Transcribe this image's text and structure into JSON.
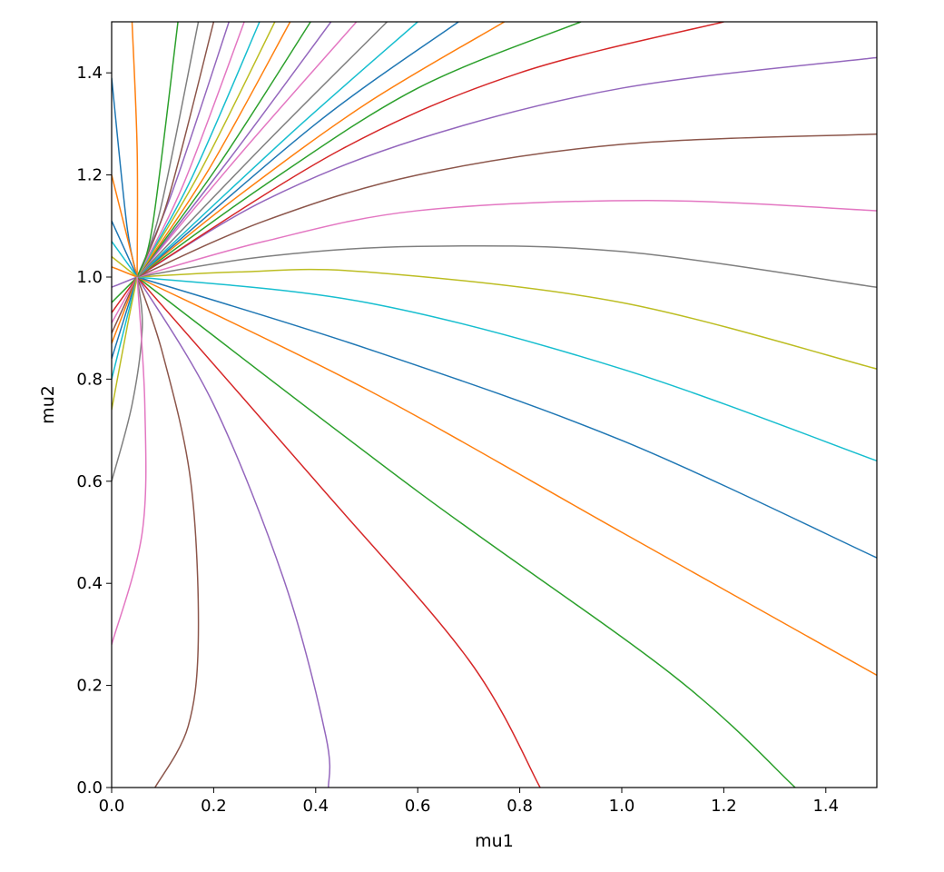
{
  "chart_data": {
    "type": "line",
    "title": "",
    "xlabel": "mu1",
    "ylabel": "mu2",
    "xlim": [
      0,
      1.5
    ],
    "ylim": [
      0,
      1.5
    ],
    "xticks": [
      "0.0",
      "0.2",
      "0.4",
      "0.6",
      "0.8",
      "1.0",
      "1.2",
      "1.4"
    ],
    "yticks": [
      "0.0",
      "0.2",
      "0.4",
      "0.6",
      "0.8",
      "1.0",
      "1.2",
      "1.4"
    ],
    "grid": false,
    "legend": "none",
    "focal_point": [
      0.05,
      1.0
    ],
    "curve_family": {
      "description_values": "curves radiate from focal point; bending in mu1/mu2 plane",
      "colors": [
        "#1f77b4",
        "#ff7f0e",
        "#2ca02c",
        "#d62728",
        "#9467bd",
        "#8c564b",
        "#e377c2",
        "#7f7f7f",
        "#bcbd22",
        "#17becf"
      ]
    },
    "series": [
      {
        "color": "#8c564b",
        "points": [
          [
            0.085,
            0.0
          ],
          [
            0.15,
            0.12
          ],
          [
            0.17,
            0.3
          ],
          [
            0.155,
            0.6
          ],
          [
            0.1,
            0.85
          ],
          [
            0.05,
            1.0
          ]
        ]
      },
      {
        "color": "#9467bd",
        "points": [
          [
            0.425,
            0.0
          ],
          [
            0.42,
            0.1
          ],
          [
            0.34,
            0.4
          ],
          [
            0.2,
            0.75
          ],
          [
            0.05,
            1.0
          ]
        ]
      },
      {
        "color": "#d62728",
        "points": [
          [
            0.84,
            0.0
          ],
          [
            0.7,
            0.25
          ],
          [
            0.4,
            0.6
          ],
          [
            0.05,
            1.0
          ]
        ]
      },
      {
        "color": "#2ca02c",
        "points": [
          [
            1.34,
            0.0
          ],
          [
            1.1,
            0.22
          ],
          [
            0.6,
            0.58
          ],
          [
            0.05,
            1.0
          ]
        ]
      },
      {
        "color": "#ff7f0e",
        "points": [
          [
            1.5,
            0.22
          ],
          [
            1.0,
            0.5
          ],
          [
            0.5,
            0.78
          ],
          [
            0.05,
            1.0
          ]
        ]
      },
      {
        "color": "#1f77b4",
        "points": [
          [
            1.5,
            0.45
          ],
          [
            1.0,
            0.68
          ],
          [
            0.5,
            0.86
          ],
          [
            0.05,
            1.0
          ]
        ]
      },
      {
        "color": "#17becf",
        "points": [
          [
            1.5,
            0.64
          ],
          [
            1.0,
            0.82
          ],
          [
            0.5,
            0.95
          ],
          [
            0.05,
            1.0
          ]
        ]
      },
      {
        "color": "#bcbd22",
        "points": [
          [
            1.5,
            0.82
          ],
          [
            1.0,
            0.95
          ],
          [
            0.5,
            1.01
          ],
          [
            0.25,
            1.01
          ],
          [
            0.05,
            1.0
          ]
        ]
      },
      {
        "color": "#7f7f7f",
        "points": [
          [
            1.5,
            0.98
          ],
          [
            1.0,
            1.05
          ],
          [
            0.6,
            1.06
          ],
          [
            0.3,
            1.04
          ],
          [
            0.05,
            1.0
          ]
        ]
      },
      {
        "color": "#e377c2",
        "points": [
          [
            1.5,
            1.13
          ],
          [
            1.05,
            1.15
          ],
          [
            0.6,
            1.13
          ],
          [
            0.3,
            1.07
          ],
          [
            0.05,
            1.0
          ]
        ]
      },
      {
        "color": "#8c564b",
        "points": [
          [
            1.5,
            1.28
          ],
          [
            1.0,
            1.26
          ],
          [
            0.6,
            1.2
          ],
          [
            0.3,
            1.11
          ],
          [
            0.05,
            1.0
          ]
        ]
      },
      {
        "color": "#9467bd",
        "points": [
          [
            1.5,
            1.43
          ],
          [
            1.0,
            1.37
          ],
          [
            0.6,
            1.27
          ],
          [
            0.3,
            1.15
          ],
          [
            0.05,
            1.0
          ]
        ]
      },
      {
        "color": "#d62728",
        "points": [
          [
            1.2,
            1.5
          ],
          [
            0.8,
            1.4
          ],
          [
            0.45,
            1.25
          ],
          [
            0.05,
            1.0
          ]
        ]
      },
      {
        "color": "#2ca02c",
        "points": [
          [
            0.92,
            1.5
          ],
          [
            0.6,
            1.37
          ],
          [
            0.3,
            1.18
          ],
          [
            0.05,
            1.0
          ]
        ]
      },
      {
        "color": "#ff7f0e",
        "points": [
          [
            0.77,
            1.5
          ],
          [
            0.5,
            1.34
          ],
          [
            0.25,
            1.16
          ],
          [
            0.05,
            1.0
          ]
        ]
      },
      {
        "color": "#1f77b4",
        "points": [
          [
            0.68,
            1.5
          ],
          [
            0.4,
            1.3
          ],
          [
            0.05,
            1.0
          ]
        ]
      },
      {
        "color": "#17becf",
        "points": [
          [
            0.6,
            1.5
          ],
          [
            0.35,
            1.28
          ],
          [
            0.05,
            1.0
          ]
        ]
      },
      {
        "color": "#7f7f7f",
        "points": [
          [
            0.54,
            1.5
          ],
          [
            0.3,
            1.26
          ],
          [
            0.05,
            1.0
          ]
        ]
      },
      {
        "color": "#e377c2",
        "points": [
          [
            0.48,
            1.5
          ],
          [
            0.26,
            1.25
          ],
          [
            0.05,
            1.0
          ]
        ]
      },
      {
        "color": "#9467bd",
        "points": [
          [
            0.43,
            1.5
          ],
          [
            0.23,
            1.23
          ],
          [
            0.05,
            1.0
          ]
        ]
      },
      {
        "color": "#2ca02c",
        "points": [
          [
            0.39,
            1.5
          ],
          [
            0.21,
            1.22
          ],
          [
            0.05,
            1.0
          ]
        ]
      },
      {
        "color": "#ff7f0e",
        "points": [
          [
            0.35,
            1.5
          ],
          [
            0.19,
            1.21
          ],
          [
            0.05,
            1.0
          ]
        ]
      },
      {
        "color": "#bcbd22",
        "points": [
          [
            0.32,
            1.5
          ],
          [
            0.17,
            1.2
          ],
          [
            0.05,
            1.0
          ]
        ]
      },
      {
        "color": "#17becf",
        "points": [
          [
            0.29,
            1.5
          ],
          [
            0.155,
            1.19
          ],
          [
            0.05,
            1.0
          ]
        ]
      },
      {
        "color": "#e377c2",
        "points": [
          [
            0.26,
            1.5
          ],
          [
            0.14,
            1.18
          ],
          [
            0.05,
            1.0
          ]
        ]
      },
      {
        "color": "#9467bd",
        "points": [
          [
            0.23,
            1.5
          ],
          [
            0.12,
            1.17
          ],
          [
            0.05,
            1.0
          ]
        ]
      },
      {
        "color": "#8c564b",
        "points": [
          [
            0.2,
            1.5
          ],
          [
            0.11,
            1.15
          ],
          [
            0.05,
            1.0
          ]
        ]
      },
      {
        "color": "#7f7f7f",
        "points": [
          [
            0.17,
            1.5
          ],
          [
            0.095,
            1.13
          ],
          [
            0.05,
            1.0
          ]
        ]
      },
      {
        "color": "#2ca02c",
        "points": [
          [
            0.13,
            1.5
          ],
          [
            0.08,
            1.1
          ],
          [
            0.05,
            1.0
          ]
        ]
      },
      {
        "color": "#ff7f0e",
        "points": [
          [
            0.04,
            1.5
          ],
          [
            0.05,
            1.25
          ],
          [
            0.05,
            1.0
          ]
        ]
      },
      {
        "color": "#1f77b4",
        "points": [
          [
            0.0,
            1.39
          ],
          [
            0.03,
            1.1
          ],
          [
            0.05,
            1.0
          ]
        ]
      },
      {
        "color": "#ff7f0e",
        "points": [
          [
            0.0,
            1.2
          ],
          [
            0.05,
            1.0
          ]
        ]
      },
      {
        "color": "#1f77b4",
        "points": [
          [
            0.0,
            1.11
          ],
          [
            0.05,
            1.0
          ]
        ]
      },
      {
        "color": "#17becf",
        "points": [
          [
            0.0,
            1.07
          ],
          [
            0.05,
            1.0
          ]
        ]
      },
      {
        "color": "#bcbd22",
        "points": [
          [
            0.0,
            1.04
          ],
          [
            0.05,
            1.0
          ]
        ]
      },
      {
        "color": "#ff7f0e",
        "points": [
          [
            0.0,
            1.02
          ],
          [
            0.05,
            1.0
          ]
        ]
      },
      {
        "color": "#9467bd",
        "points": [
          [
            0.0,
            0.98
          ],
          [
            0.05,
            1.0
          ]
        ]
      },
      {
        "color": "#2ca02c",
        "points": [
          [
            0.0,
            0.95
          ],
          [
            0.05,
            1.0
          ]
        ]
      },
      {
        "color": "#d62728",
        "points": [
          [
            0.0,
            0.93
          ],
          [
            0.05,
            1.0
          ]
        ]
      },
      {
        "color": "#e377c2",
        "points": [
          [
            0.0,
            0.91
          ],
          [
            0.05,
            1.0
          ]
        ]
      },
      {
        "color": "#8c564b",
        "points": [
          [
            0.0,
            0.89
          ],
          [
            0.05,
            1.0
          ]
        ]
      },
      {
        "color": "#ff7f0e",
        "points": [
          [
            0.0,
            0.87
          ],
          [
            0.05,
            1.0
          ]
        ]
      },
      {
        "color": "#1f77b4",
        "points": [
          [
            0.0,
            0.84
          ],
          [
            0.05,
            1.0
          ]
        ]
      },
      {
        "color": "#17becf",
        "points": [
          [
            0.0,
            0.8
          ],
          [
            0.05,
            1.0
          ]
        ]
      },
      {
        "color": "#bcbd22",
        "points": [
          [
            0.0,
            0.74
          ],
          [
            0.03,
            0.9
          ],
          [
            0.05,
            1.0
          ]
        ]
      },
      {
        "color": "#7f7f7f",
        "points": [
          [
            0.0,
            0.6
          ],
          [
            0.04,
            0.75
          ],
          [
            0.06,
            0.9
          ],
          [
            0.05,
            1.0
          ]
        ]
      },
      {
        "color": "#e377c2",
        "points": [
          [
            0.0,
            0.28
          ],
          [
            0.06,
            0.5
          ],
          [
            0.065,
            0.75
          ],
          [
            0.05,
            1.0
          ]
        ]
      }
    ]
  }
}
